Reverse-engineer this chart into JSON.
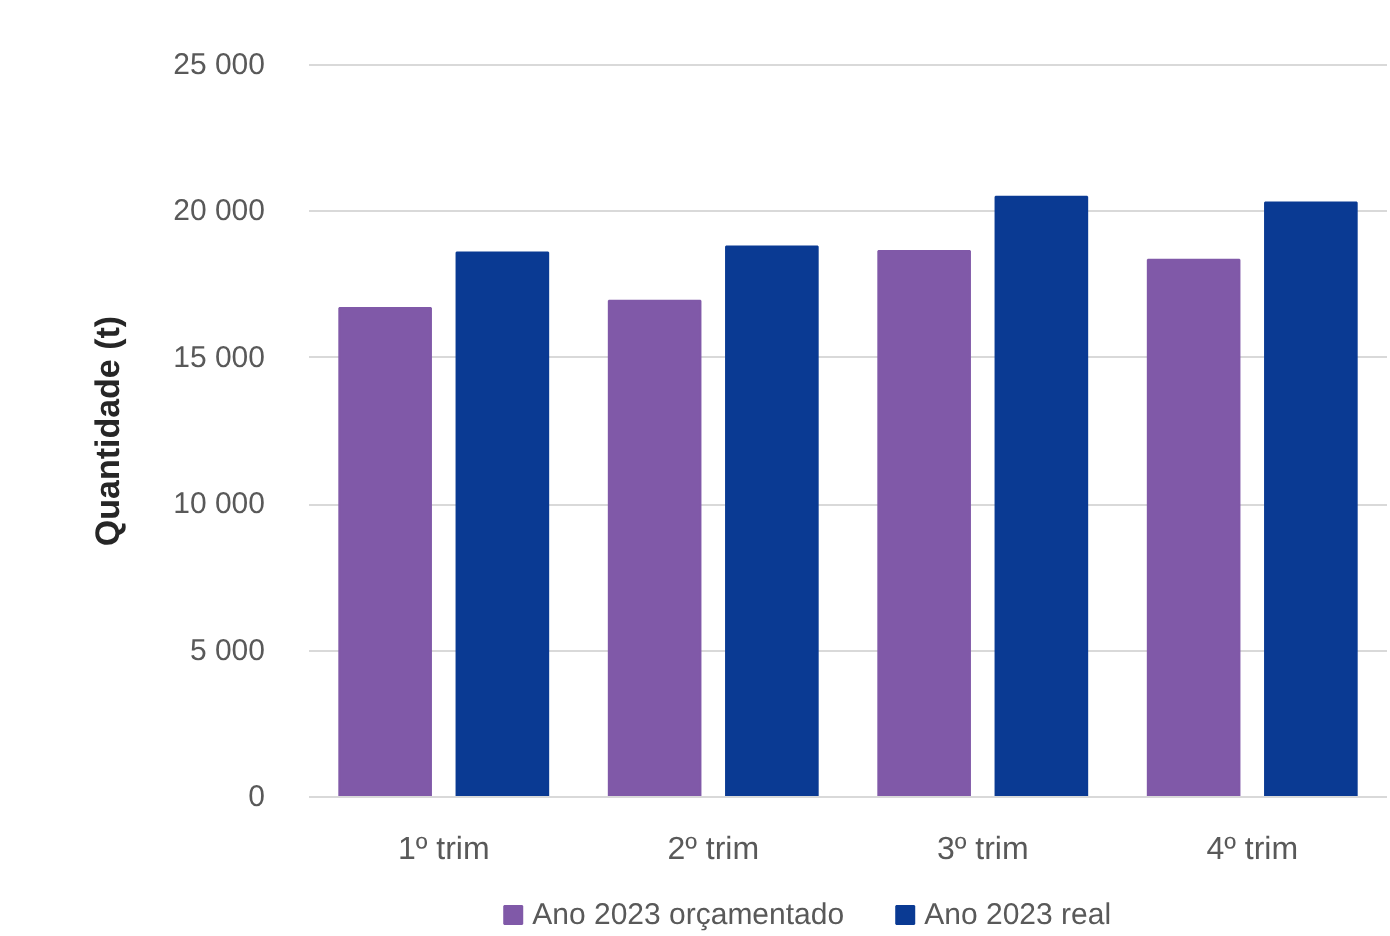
{
  "chart_data": {
    "type": "bar",
    "ylabel": "Quantidade (t)",
    "categories": [
      "1º trim",
      "2º trim",
      "3º trim",
      "4º trim"
    ],
    "series": [
      {
        "name": "Ano 2023 orçamentado",
        "color": "#8059a8",
        "values": [
          16700,
          16950,
          18650,
          18350
        ]
      },
      {
        "name": "Ano 2023 real",
        "color": "#0a3a93",
        "values": [
          18600,
          18800,
          20500,
          20300
        ]
      }
    ],
    "ylim": [
      0,
      25000
    ],
    "yticks": [
      0,
      {
        "value": 5000,
        "label": "5 000"
      },
      {
        "value": 10000,
        "label": "10 000"
      },
      {
        "value": 15000,
        "label": "15 000"
      },
      {
        "value": 20000,
        "label": "20 000"
      },
      {
        "value": 25000,
        "label": "25 000"
      }
    ],
    "grid": "y",
    "legend": "bottom"
  }
}
